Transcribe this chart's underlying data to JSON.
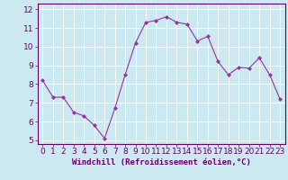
{
  "x": [
    0,
    1,
    2,
    3,
    4,
    5,
    6,
    7,
    8,
    9,
    10,
    11,
    12,
    13,
    14,
    15,
    16,
    17,
    18,
    19,
    20,
    21,
    22,
    23
  ],
  "y": [
    8.2,
    7.3,
    7.3,
    6.5,
    6.3,
    5.8,
    5.1,
    6.7,
    8.5,
    10.2,
    11.3,
    11.4,
    11.6,
    11.3,
    11.2,
    10.3,
    10.55,
    9.2,
    8.5,
    8.9,
    8.85,
    9.4,
    8.5,
    7.2
  ],
  "line_color": "#993399",
  "marker_color": "#993399",
  "bg_color": "#cce8f0",
  "grid_color": "#ffffff",
  "xlabel": "Windchill (Refroidissement éolien,°C)",
  "xlim": [
    -0.5,
    23.5
  ],
  "ylim": [
    4.8,
    12.3
  ],
  "yticks": [
    5,
    6,
    7,
    8,
    9,
    10,
    11,
    12
  ],
  "xticks": [
    0,
    1,
    2,
    3,
    4,
    5,
    6,
    7,
    8,
    9,
    10,
    11,
    12,
    13,
    14,
    15,
    16,
    17,
    18,
    19,
    20,
    21,
    22,
    23
  ],
  "xlabel_fontsize": 6.5,
  "tick_fontsize": 6.5,
  "axis_label_color": "#660066",
  "tick_color": "#660066",
  "spine_color": "#660066"
}
